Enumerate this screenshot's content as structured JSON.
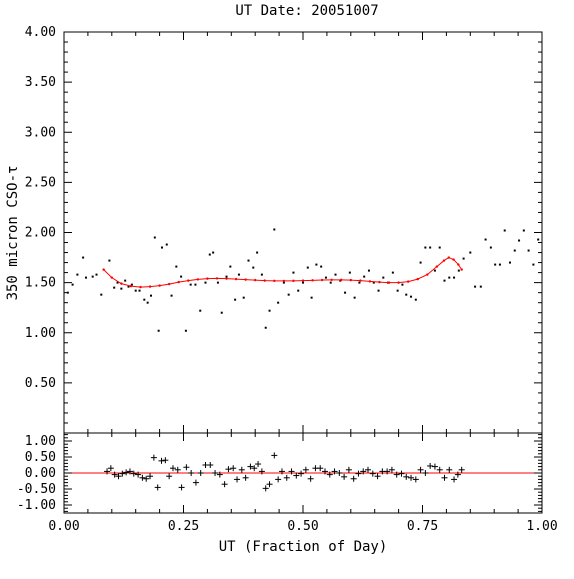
{
  "chart_data": [
    {
      "type": "scatter",
      "title": "UT Date: 20051007",
      "ylabel": "350 micron CSO-τ",
      "xlim": [
        0,
        1
      ],
      "ylim": [
        0.0,
        4.0
      ],
      "yticks": [
        "0.50",
        "1.00",
        "1.50",
        "2.00",
        "2.50",
        "3.00",
        "3.50",
        "4.00"
      ],
      "colors": {
        "points": "#000000",
        "fit": "#ff0000"
      },
      "series": [
        {
          "points": [
            [
              0.008,
              1.4
            ],
            [
              0.018,
              1.48
            ],
            [
              0.028,
              1.58
            ],
            [
              0.04,
              1.75
            ],
            [
              0.046,
              1.55
            ],
            [
              0.06,
              1.56
            ],
            [
              0.068,
              1.58
            ],
            [
              0.078,
              1.38
            ],
            [
              0.095,
              1.72
            ],
            [
              0.105,
              1.45
            ],
            [
              0.112,
              1.5
            ],
            [
              0.12,
              1.44
            ],
            [
              0.128,
              1.52
            ],
            [
              0.135,
              1.46
            ],
            [
              0.142,
              1.48
            ],
            [
              0.15,
              1.42
            ],
            [
              0.158,
              1.42
            ],
            [
              0.168,
              1.33
            ],
            [
              0.175,
              1.3
            ],
            [
              0.182,
              1.37
            ],
            [
              0.19,
              1.95
            ],
            [
              0.198,
              1.02
            ],
            [
              0.205,
              1.85
            ],
            [
              0.215,
              1.88
            ],
            [
              0.225,
              1.37
            ],
            [
              0.235,
              1.66
            ],
            [
              0.245,
              1.56
            ],
            [
              0.255,
              1.02
            ],
            [
              0.265,
              1.48
            ],
            [
              0.275,
              1.48
            ],
            [
              0.285,
              1.22
            ],
            [
              0.296,
              1.5
            ],
            [
              0.305,
              1.78
            ],
            [
              0.312,
              1.8
            ],
            [
              0.322,
              1.5
            ],
            [
              0.33,
              1.2
            ],
            [
              0.34,
              1.56
            ],
            [
              0.348,
              1.66
            ],
            [
              0.358,
              1.33
            ],
            [
              0.366,
              1.58
            ],
            [
              0.376,
              1.35
            ],
            [
              0.386,
              1.72
            ],
            [
              0.396,
              1.65
            ],
            [
              0.404,
              1.8
            ],
            [
              0.414,
              1.58
            ],
            [
              0.422,
              1.05
            ],
            [
              0.43,
              1.22
            ],
            [
              0.44,
              2.03
            ],
            [
              0.448,
              1.3
            ],
            [
              0.46,
              1.5
            ],
            [
              0.47,
              1.38
            ],
            [
              0.48,
              1.6
            ],
            [
              0.49,
              1.42
            ],
            [
              0.5,
              1.5
            ],
            [
              0.51,
              1.65
            ],
            [
              0.518,
              1.35
            ],
            [
              0.528,
              1.68
            ],
            [
              0.538,
              1.66
            ],
            [
              0.548,
              1.55
            ],
            [
              0.558,
              1.5
            ],
            [
              0.568,
              1.58
            ],
            [
              0.578,
              1.52
            ],
            [
              0.588,
              1.4
            ],
            [
              0.598,
              1.6
            ],
            [
              0.608,
              1.35
            ],
            [
              0.618,
              1.5
            ],
            [
              0.628,
              1.56
            ],
            [
              0.638,
              1.62
            ],
            [
              0.648,
              1.5
            ],
            [
              0.658,
              1.42
            ],
            [
              0.668,
              1.55
            ],
            [
              0.678,
              1.5
            ],
            [
              0.688,
              1.6
            ],
            [
              0.698,
              1.42
            ],
            [
              0.708,
              1.48
            ],
            [
              0.716,
              1.38
            ],
            [
              0.726,
              1.36
            ],
            [
              0.736,
              1.33
            ],
            [
              0.746,
              1.7
            ],
            [
              0.756,
              1.85
            ],
            [
              0.766,
              1.85
            ],
            [
              0.776,
              1.62
            ],
            [
              0.786,
              1.85
            ],
            [
              0.796,
              1.52
            ],
            [
              0.806,
              1.55
            ],
            [
              0.816,
              1.55
            ],
            [
              0.826,
              1.62
            ],
            [
              0.836,
              1.74
            ],
            [
              0.85,
              1.8
            ],
            [
              0.86,
              1.46
            ],
            [
              0.872,
              1.46
            ],
            [
              0.882,
              1.93
            ],
            [
              0.893,
              1.85
            ],
            [
              0.902,
              1.68
            ],
            [
              0.912,
              1.68
            ],
            [
              0.922,
              2.02
            ],
            [
              0.933,
              1.7
            ],
            [
              0.943,
              1.82
            ],
            [
              0.952,
              1.92
            ],
            [
              0.962,
              2.02
            ],
            [
              0.972,
              1.82
            ],
            [
              0.982,
              1.68
            ],
            [
              0.992,
              1.93
            ]
          ]
        },
        {
          "fit_points": [
            [
              0.083,
              1.63
            ],
            [
              0.1,
              1.55
            ],
            [
              0.12,
              1.49
            ],
            [
              0.14,
              1.465
            ],
            [
              0.16,
              1.455
            ],
            [
              0.18,
              1.46
            ],
            [
              0.2,
              1.47
            ],
            [
              0.22,
              1.485
            ],
            [
              0.24,
              1.505
            ],
            [
              0.26,
              1.52
            ],
            [
              0.28,
              1.532
            ],
            [
              0.3,
              1.54
            ],
            [
              0.32,
              1.542
            ],
            [
              0.34,
              1.54
            ],
            [
              0.36,
              1.535
            ],
            [
              0.38,
              1.53
            ],
            [
              0.4,
              1.525
            ],
            [
              0.42,
              1.52
            ],
            [
              0.44,
              1.518
            ],
            [
              0.46,
              1.517
            ],
            [
              0.48,
              1.518
            ],
            [
              0.5,
              1.52
            ],
            [
              0.52,
              1.523
            ],
            [
              0.54,
              1.526
            ],
            [
              0.56,
              1.528
            ],
            [
              0.58,
              1.528
            ],
            [
              0.6,
              1.525
            ],
            [
              0.62,
              1.52
            ],
            [
              0.64,
              1.512
            ],
            [
              0.66,
              1.505
            ],
            [
              0.68,
              1.5
            ],
            [
              0.7,
              1.5
            ],
            [
              0.72,
              1.51
            ],
            [
              0.74,
              1.535
            ],
            [
              0.76,
              1.58
            ],
            [
              0.78,
              1.66
            ],
            [
              0.795,
              1.72
            ],
            [
              0.805,
              1.75
            ],
            [
              0.815,
              1.73
            ],
            [
              0.825,
              1.68
            ],
            [
              0.832,
              1.63
            ]
          ]
        }
      ]
    },
    {
      "type": "scatter",
      "xlabel": "UT (Fraction of Day)",
      "xlim": [
        0,
        1
      ],
      "ylim": [
        -1.25,
        1.25
      ],
      "xticks": [
        "0.00",
        "0.25",
        "0.50",
        "0.75",
        "1.00"
      ],
      "yticks": [
        "-1.00",
        "-0.50",
        "0.00",
        "0.50",
        "1.00"
      ],
      "colors": {
        "points": "#000000",
        "zero_line": "#ff0000"
      },
      "series": [
        {
          "points": [
            [
              0.09,
              0.05
            ],
            [
              0.098,
              0.15
            ],
            [
              0.106,
              -0.05
            ],
            [
              0.114,
              -0.1
            ],
            [
              0.122,
              -0.02
            ],
            [
              0.13,
              0.02
            ],
            [
              0.138,
              0.05
            ],
            [
              0.146,
              -0.02
            ],
            [
              0.155,
              -0.05
            ],
            [
              0.164,
              -0.15
            ],
            [
              0.172,
              -0.18
            ],
            [
              0.18,
              -0.1
            ],
            [
              0.188,
              0.48
            ],
            [
              0.196,
              -0.45
            ],
            [
              0.204,
              0.38
            ],
            [
              0.212,
              0.4
            ],
            [
              0.22,
              -0.1
            ],
            [
              0.228,
              0.15
            ],
            [
              0.238,
              0.1
            ],
            [
              0.246,
              -0.45
            ],
            [
              0.256,
              0.18
            ],
            [
              0.266,
              0.0
            ],
            [
              0.276,
              -0.3
            ],
            [
              0.286,
              0.0
            ],
            [
              0.296,
              0.25
            ],
            [
              0.306,
              0.25
            ],
            [
              0.316,
              0.0
            ],
            [
              0.326,
              -0.05
            ],
            [
              0.336,
              -0.35
            ],
            [
              0.344,
              0.12
            ],
            [
              0.354,
              0.15
            ],
            [
              0.362,
              -0.2
            ],
            [
              0.372,
              0.1
            ],
            [
              0.38,
              -0.15
            ],
            [
              0.39,
              0.2
            ],
            [
              0.398,
              0.15
            ],
            [
              0.406,
              0.28
            ],
            [
              0.414,
              0.05
            ],
            [
              0.422,
              -0.48
            ],
            [
              0.43,
              -0.35
            ],
            [
              0.44,
              0.55
            ],
            [
              0.448,
              -0.2
            ],
            [
              0.456,
              0.05
            ],
            [
              0.466,
              -0.15
            ],
            [
              0.476,
              0.05
            ],
            [
              0.486,
              -0.08
            ],
            [
              0.496,
              -0.02
            ],
            [
              0.506,
              0.1
            ],
            [
              0.516,
              -0.18
            ],
            [
              0.526,
              0.15
            ],
            [
              0.536,
              0.15
            ],
            [
              0.546,
              0.05
            ],
            [
              0.556,
              -0.05
            ],
            [
              0.566,
              0.05
            ],
            [
              0.576,
              0.0
            ],
            [
              0.586,
              -0.12
            ],
            [
              0.596,
              0.1
            ],
            [
              0.606,
              -0.18
            ],
            [
              0.616,
              -0.02
            ],
            [
              0.626,
              0.05
            ],
            [
              0.636,
              0.1
            ],
            [
              0.646,
              -0.02
            ],
            [
              0.656,
              -0.1
            ],
            [
              0.666,
              0.05
            ],
            [
              0.676,
              0.05
            ],
            [
              0.686,
              0.1
            ],
            [
              0.696,
              -0.05
            ],
            [
              0.706,
              -0.02
            ],
            [
              0.716,
              -0.12
            ],
            [
              0.726,
              -0.15
            ],
            [
              0.736,
              -0.2
            ],
            [
              0.746,
              0.1
            ],
            [
              0.756,
              0.0
            ],
            [
              0.766,
              0.22
            ],
            [
              0.776,
              0.2
            ],
            [
              0.786,
              0.1
            ],
            [
              0.796,
              -0.15
            ],
            [
              0.806,
              0.1
            ],
            [
              0.816,
              -0.2
            ],
            [
              0.824,
              -0.05
            ],
            [
              0.832,
              0.1
            ]
          ]
        }
      ]
    }
  ]
}
